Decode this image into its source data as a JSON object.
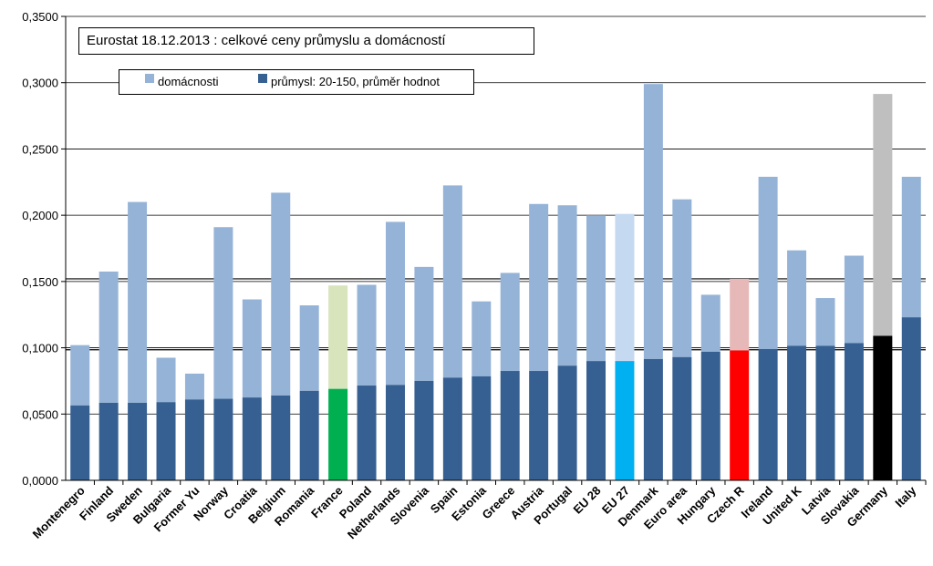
{
  "chart_data": {
    "type": "bar",
    "title": "Eurostat 18.12.2013 : celkové ceny průmyslu a domácností",
    "categories": [
      "Montenegro",
      "Finland",
      "Sweden",
      "Bulgaria",
      "Former Yu",
      "Norway",
      "Croatia",
      "Belgium",
      "Romania",
      "France",
      "Poland",
      "Netherlands",
      "Slovenia",
      "Spain",
      "Estonia",
      "Greece",
      "Austria",
      "Portugal",
      "EU 28",
      "EU 27",
      "Denmark",
      "Euro area",
      "Hungary",
      "Czech R",
      "Ireland",
      "United K",
      "Latvia",
      "Slovakia",
      "Germany",
      "Italy"
    ],
    "series": [
      {
        "name": "domácnosti",
        "color": "#95b3d7",
        "values": [
          0.102,
          0.1575,
          0.21,
          0.0925,
          0.0805,
          0.191,
          0.1365,
          0.217,
          0.132,
          0.147,
          0.1475,
          0.195,
          0.161,
          0.2225,
          0.135,
          0.1565,
          0.2085,
          0.2075,
          0.2,
          0.201,
          0.299,
          0.212,
          0.14,
          0.152,
          0.229,
          0.1735,
          0.1375,
          0.1695,
          0.2915,
          0.229
        ]
      },
      {
        "name": "průmysl: 20-150, průměr hodnot",
        "color": "#366092",
        "values": [
          0.0565,
          0.0585,
          0.0585,
          0.059,
          0.061,
          0.0615,
          0.0625,
          0.064,
          0.0675,
          0.069,
          0.0715,
          0.072,
          0.075,
          0.0775,
          0.0785,
          0.0825,
          0.0825,
          0.0865,
          0.09,
          0.09,
          0.0915,
          0.093,
          0.097,
          0.098,
          0.099,
          0.1015,
          0.1015,
          0.1035,
          0.109,
          0.123
        ]
      }
    ],
    "highlights": {
      "France": {
        "top": "#d7e4bc",
        "bottom": "#00b050"
      },
      "EU 27": {
        "top": "#c5d9f1",
        "bottom": "#00b0f0"
      },
      "Czech R": {
        "top": "#e6b9b8",
        "bottom": "#ff0000"
      },
      "Germany": {
        "top": "#bfbfbf",
        "bottom": "#000000"
      }
    },
    "ylim": [
      0,
      0.35
    ],
    "yticks": [
      "0,0000",
      "0,0500",
      "0,1000",
      "0,1500",
      "0,2000",
      "0,2500",
      "0,3000",
      "0,3500"
    ],
    "reference_lines": [
      0.0985,
      0.152
    ],
    "grid": true,
    "legend": "top-left"
  }
}
